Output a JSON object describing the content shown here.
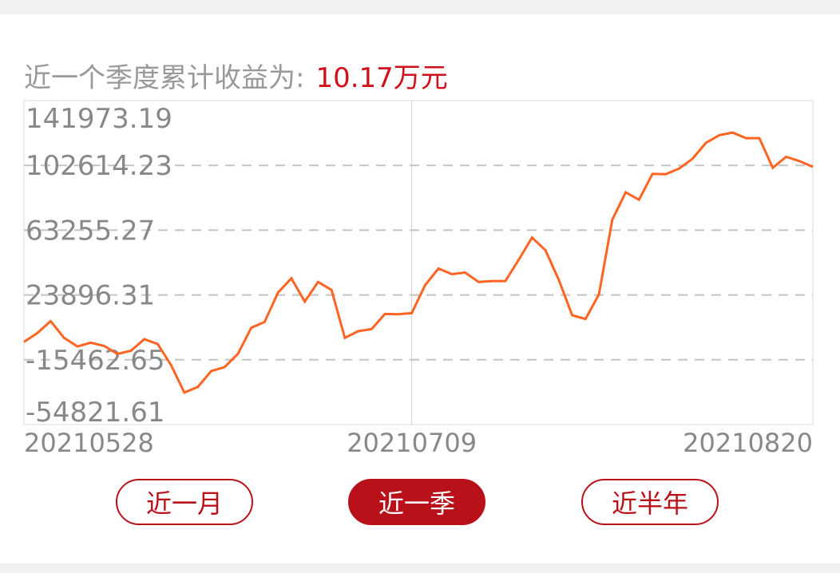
{
  "header": {
    "label": "近一个季度累计收益为:",
    "value": "10.17万元"
  },
  "colors": {
    "line": "#ff6422",
    "accent": "#b8111a",
    "value": "#d0101a",
    "grid": "#c4c4c4"
  },
  "chart_data": {
    "type": "line",
    "ylim": [
      -54821.61,
      141973.19
    ],
    "yticks": [
      "141973.19",
      "102614.23",
      "63255.27",
      "23896.31",
      "-15462.65",
      "-54821.61"
    ],
    "ytick_values": [
      141973.19,
      102614.23,
      63255.27,
      23896.31,
      -15462.65,
      -54821.61
    ],
    "xticks": [
      {
        "index": 0,
        "label": "20210528"
      },
      {
        "index": 29,
        "label": "20210709"
      },
      {
        "index": 59,
        "label": "20210820"
      }
    ],
    "grid": "dashed horizontal",
    "values": [
      -4627,
      719,
      8007,
      -2195,
      -7347,
      -5113,
      -7056,
      -11914,
      -9971,
      -2974,
      -5890,
      -18718,
      -35384,
      -31983,
      -22410,
      -19981,
      -11914,
      3975,
      7522,
      25355,
      33955,
      19864,
      31817,
      26958,
      -2195,
      1885,
      3149,
      12381,
      12235,
      12866,
      29873,
      39932,
      36531,
      37502,
      31817,
      32303,
      32303,
      45277,
      58737,
      51108,
      33129,
      11603,
      9320,
      24237,
      69573,
      86239,
      81720,
      97415,
      97269,
      100671,
      106647,
      116220,
      120933,
      122537,
      119135,
      119135,
      101157,
      107813,
      105190,
      101700
    ]
  },
  "buttons": [
    {
      "label": "近一月",
      "active": false
    },
    {
      "label": "近一季",
      "active": true
    },
    {
      "label": "近半年",
      "active": false
    }
  ]
}
